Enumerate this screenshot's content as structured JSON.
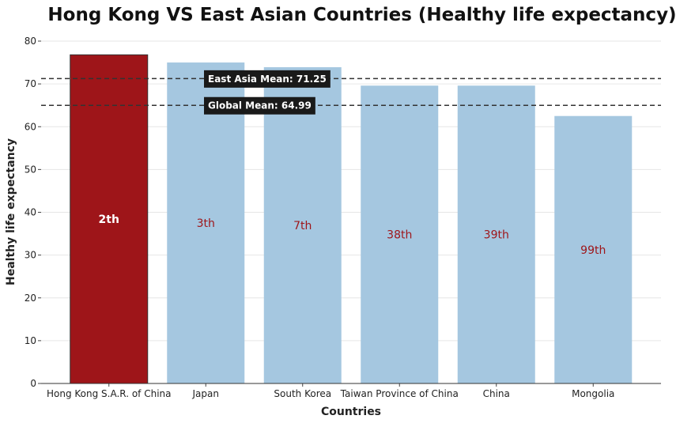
{
  "chart_data": {
    "type": "bar",
    "title": "Hong Kong VS East Asian Countries (Healthy life expectancy)",
    "xlabel": "Countries",
    "ylabel": "Healthy life expectancy",
    "ylim": [
      0,
      80
    ],
    "yticks": [
      "0",
      "10",
      "20",
      "30",
      "40",
      "50",
      "60",
      "70",
      "80"
    ],
    "grid": true,
    "categories": [
      "Hong Kong S.A.R. of China",
      "Japan",
      "South Korea",
      "Taiwan Province of China",
      "China",
      "Mongolia"
    ],
    "values": [
      76.8,
      75.0,
      73.9,
      69.6,
      69.6,
      62.5
    ],
    "rank_labels": [
      "2th",
      "3th",
      "7th",
      "38th",
      "39th",
      "99th"
    ],
    "highlight_index": 0,
    "colors": {
      "highlight": "#9e1519",
      "bar": "#a5c7e0",
      "rank_text": "#9e1519",
      "rank_text_highlight": "#ffffff",
      "mean_line": "#333333",
      "mean_label_bg": "#1a1a1a"
    },
    "reference_lines": [
      {
        "label": "East Asia Mean: 71.25",
        "value": 71.25
      },
      {
        "label": "Global Mean: 64.99",
        "value": 64.99
      }
    ]
  }
}
